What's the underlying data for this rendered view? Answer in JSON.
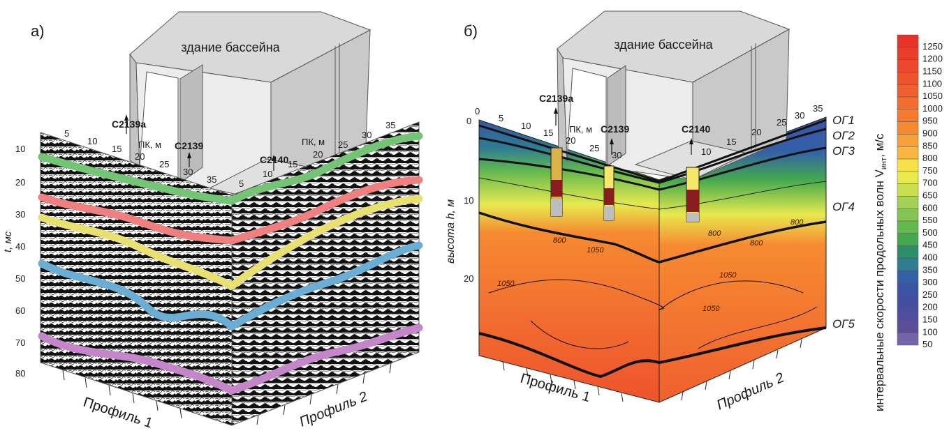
{
  "panel_a": {
    "label": "а)",
    "building_label": "здание бассейна",
    "wells": [
      "C2139a",
      "C2139",
      "C2140"
    ],
    "pk_label_left": "ПК, м",
    "pk_label_right": "ПК, м",
    "pk_ticks_left": [
      "5",
      "10",
      "15",
      "20",
      "25",
      "30",
      "35"
    ],
    "pk_ticks_right": [
      "5",
      "10",
      "15",
      "20",
      "25",
      "30",
      "35"
    ],
    "y_axis_label": "t, мс",
    "y_ticks": [
      "10",
      "20",
      "30",
      "40",
      "50",
      "60",
      "70",
      "80"
    ],
    "profile1": "Профиль 1",
    "profile2": "Профиль 2",
    "horizon_colors": [
      "#74c476",
      "#f08080",
      "#e8e070",
      "#6aaed6",
      "#c585c9"
    ]
  },
  "panel_b": {
    "label": "б)",
    "building_label": "здание бассейна",
    "wells": [
      "C2139a",
      "C2139",
      "C2140"
    ],
    "pk_label_left": "ПК, м",
    "pk_ticks_left": [
      "0",
      "5",
      "10",
      "15",
      "20",
      "25",
      "30"
    ],
    "pk_ticks_right": [
      "10",
      "15",
      "20",
      "25",
      "30",
      "35"
    ],
    "y_axis_label": "высота h, м",
    "y_ticks": [
      "0",
      "10",
      "20"
    ],
    "horizons": [
      "ОГ1",
      "ОГ2",
      "ОГ3",
      "ОГ4",
      "ОГ5"
    ],
    "contour_labels": [
      "800",
      "1050",
      "1050",
      "800",
      "800",
      "1050",
      "1050"
    ],
    "profile1": "Профиль 1",
    "profile2": "Профиль 2"
  },
  "colorbar": {
    "title": "интервальные скорости продольных волн V",
    "title_sub": "инт",
    "title_unit": ", м/с",
    "labels": [
      "1250",
      "1200",
      "1150",
      "1100",
      "1050",
      "1000",
      "950",
      "900",
      "850",
      "800",
      "750",
      "700",
      "650",
      "600",
      "550",
      "500",
      "450",
      "400",
      "350",
      "300",
      "250",
      "200",
      "150",
      "100",
      "50"
    ],
    "colors": [
      "#e8332a",
      "#ea3d2b",
      "#ec472c",
      "#ee522d",
      "#f05f2e",
      "#f26d2f",
      "#f47b30",
      "#f68a31",
      "#f9a03a",
      "#fbb543",
      "#f8e04a",
      "#e7e94d",
      "#c9de4f",
      "#a4d155",
      "#84c453",
      "#63b84e",
      "#44a94d",
      "#2d8f6a",
      "#2e7d92",
      "#3460a8",
      "#3a55a5",
      "#4350a1",
      "#4f4e9e",
      "#5d4e9a",
      "#7465a8"
    ]
  }
}
